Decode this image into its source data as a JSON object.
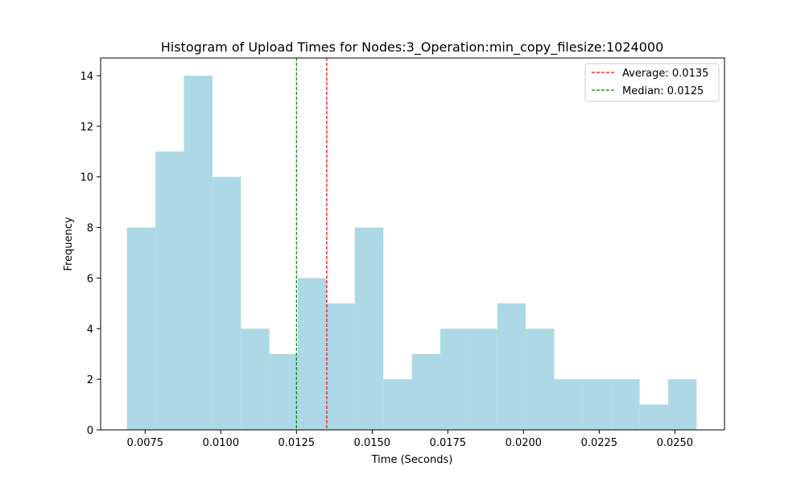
{
  "chart_data": {
    "type": "bar",
    "title": "Histogram of Upload Times for Nodes:3_Operation:min_copy_filesize:1024000",
    "xlabel": "Time (Seconds)",
    "ylabel": "Frequency",
    "bin_start": 0.0069,
    "bin_width": 0.000941,
    "frequencies": [
      8,
      11,
      14,
      10,
      4,
      3,
      6,
      5,
      8,
      2,
      3,
      4,
      4,
      5,
      4,
      2,
      2,
      2,
      1,
      2
    ],
    "xlim": [
      0.00603,
      0.02664
    ],
    "ylim": [
      0,
      14.7
    ],
    "xticks": [
      "0.0075",
      "0.0100",
      "0.0125",
      "0.0150",
      "0.0175",
      "0.0200",
      "0.0225",
      "0.0250"
    ],
    "xtick_values": [
      0.0075,
      0.01,
      0.0125,
      0.015,
      0.0175,
      0.02,
      0.0225,
      0.025
    ],
    "yticks": [
      "0",
      "2",
      "4",
      "6",
      "8",
      "10",
      "12",
      "14"
    ],
    "ytick_values": [
      0,
      2,
      4,
      6,
      8,
      10,
      12,
      14
    ],
    "bar_color": "#add8e6",
    "reference_lines": [
      {
        "label": "Average: 0.0135",
        "value": 0.0135,
        "color": "#ff0000",
        "style": "dashed"
      },
      {
        "label": "Median: 0.0125",
        "value": 0.0125,
        "color": "#008000",
        "style": "dashed"
      }
    ],
    "legend_position": "top-right",
    "grid": false
  }
}
